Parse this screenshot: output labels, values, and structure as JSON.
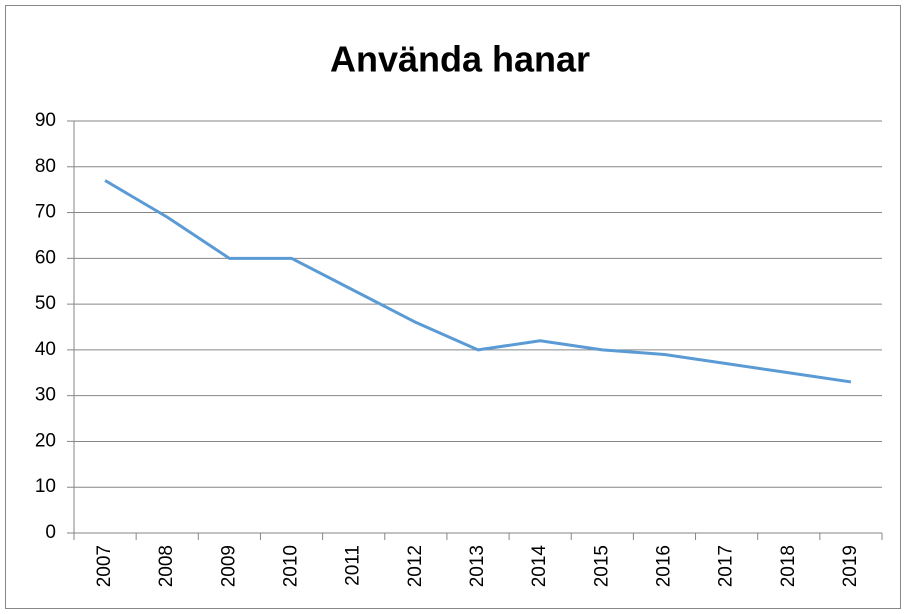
{
  "chart_data": {
    "type": "line",
    "title": "Använda hanar",
    "categories": [
      "2007",
      "2008",
      "2009",
      "2010",
      "2011",
      "2012",
      "2013",
      "2014",
      "2015",
      "2016",
      "2017",
      "2018",
      "2019"
    ],
    "series": [
      {
        "color": "#5b9bd5",
        "values": [
          77,
          69,
          60,
          60,
          53,
          46,
          40,
          42,
          40,
          39,
          37,
          35,
          33
        ]
      }
    ],
    "ylim": [
      0,
      90
    ],
    "yticks": [
      0,
      10,
      20,
      30,
      40,
      50,
      60,
      70,
      80,
      90
    ],
    "grid": true
  }
}
